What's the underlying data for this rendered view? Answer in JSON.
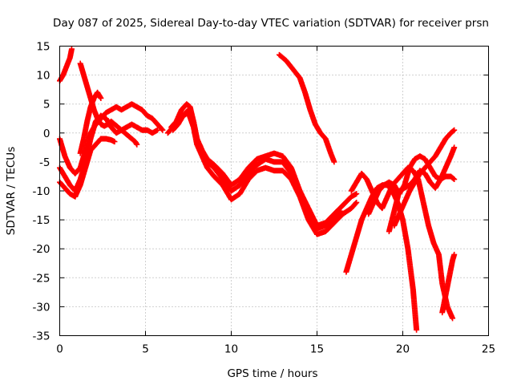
{
  "chart_data": {
    "type": "scatter",
    "title": "Day 087 of 2025, Sidereal Day-to-day VTEC variation (SDTVAR) for receiver prsn",
    "xlabel": "GPS time / hours",
    "ylabel": "SDTVAR / TECUs",
    "xlim": [
      0,
      25
    ],
    "ylim": [
      -35,
      15
    ],
    "xticks": [
      "0",
      "5",
      "10",
      "15",
      "20",
      "25"
    ],
    "yticks": [
      "15",
      "10",
      "5",
      "0",
      "-5",
      "-10",
      "-15",
      "-20",
      "-25",
      "-30",
      "-35"
    ],
    "xtick_values": [
      0,
      5,
      10,
      15,
      20,
      25
    ],
    "ytick_values": [
      15,
      10,
      5,
      0,
      -5,
      -10,
      -15,
      -20,
      -25,
      -30,
      -35
    ],
    "grid": true,
    "marker": "+",
    "color": "#ff0000",
    "series": [
      {
        "x": [
          0.0,
          0.2,
          0.4,
          0.6,
          0.7
        ],
        "y": [
          9,
          10,
          11.5,
          13,
          14.5
        ]
      },
      {
        "x": [
          1.2,
          1.4,
          1.6,
          1.8,
          2.0,
          2.2,
          2.4,
          2.6,
          2.8,
          3.0,
          3.2,
          3.4,
          3.6,
          3.8,
          4.0,
          4.2,
          4.4,
          4.5
        ],
        "y": [
          12,
          10,
          8,
          6,
          4,
          2.5,
          1.5,
          1.2,
          1.5,
          2,
          1.5,
          1,
          0.5,
          0,
          -0.5,
          -1,
          -1.5,
          -2
        ]
      },
      {
        "x": [
          0.0,
          0.3,
          0.6,
          0.9,
          1.2,
          1.5,
          1.8,
          2.1,
          2.4,
          2.7,
          3.0,
          3.3,
          3.6,
          3.9,
          4.2,
          4.5,
          4.8,
          5.1,
          5.4,
          5.7,
          6.0
        ],
        "y": [
          -1,
          -4,
          -6,
          -7,
          -6,
          -3,
          0,
          1.5,
          2.5,
          3.5,
          4,
          4.5,
          4,
          4.5,
          5,
          4.5,
          4,
          3,
          2.5,
          1.5,
          0.5
        ]
      },
      {
        "x": [
          0.0,
          0.3,
          0.6,
          0.9,
          1.2,
          1.5,
          1.8,
          2.1,
          2.4,
          2.7,
          3.0,
          3.3,
          3.6,
          3.9,
          4.2,
          4.5,
          4.8,
          5.1,
          5.4,
          5.7
        ],
        "y": [
          -6,
          -7.5,
          -9,
          -10,
          -8,
          -5,
          -1,
          2,
          3,
          2.5,
          1,
          0,
          0.5,
          1,
          1.5,
          1,
          0.5,
          0.5,
          0,
          0.5
        ]
      },
      {
        "x": [
          0.0,
          0.3,
          0.6,
          0.9,
          1.2,
          1.5,
          1.8,
          2.1,
          2.4,
          2.7,
          3.0,
          3.2
        ],
        "y": [
          -8.5,
          -9.5,
          -10.5,
          -11,
          -9,
          -6,
          -3,
          -2,
          -1,
          -1,
          -1.2,
          -1.5
        ]
      },
      {
        "x": [
          1.2,
          1.4,
          1.6,
          1.8,
          2.0,
          2.2,
          2.4
        ],
        "y": [
          -3.5,
          -1,
          2,
          4.5,
          6,
          7,
          6
        ]
      },
      {
        "x": [
          6.5,
          6.8,
          7.1,
          7.4,
          7.6,
          7.8,
          8.0,
          8.3,
          8.6,
          9.0,
          9.5,
          10.0,
          10.5,
          11.0,
          11.5,
          12.0,
          12.5,
          13.0,
          13.5,
          14.0,
          14.5,
          15.0,
          15.5,
          16.0,
          16.4
        ],
        "y": [
          1,
          2,
          4,
          5,
          4.5,
          2,
          -1,
          -3,
          -4.5,
          -5.5,
          -7,
          -9,
          -8,
          -6,
          -4.5,
          -4,
          -3.5,
          -4,
          -6,
          -10,
          -14,
          -16.5,
          -16,
          -15,
          -13.5
        ]
      },
      {
        "x": [
          6.3,
          6.6,
          6.9,
          7.2,
          7.5,
          7.8,
          8.0,
          8.3,
          8.6,
          9.0,
          9.5,
          10.0,
          10.5,
          11.0,
          11.5,
          12.0,
          12.5,
          13.0,
          13.5,
          14.0,
          14.5,
          15.0,
          15.5,
          16.0,
          16.5,
          17.0,
          17.3
        ],
        "y": [
          0,
          1,
          2,
          3,
          3.5,
          1,
          -2,
          -4,
          -6,
          -7.5,
          -9,
          -11.5,
          -10.5,
          -8,
          -6.5,
          -6,
          -6.5,
          -6.5,
          -8,
          -11,
          -15,
          -17.5,
          -17,
          -15.5,
          -14,
          -13,
          -12
        ]
      },
      {
        "x": [
          6.6,
          6.9,
          7.2,
          7.5,
          7.8,
          8.0,
          8.3,
          8.6,
          9.0,
          9.5,
          10.0,
          10.5,
          11.0,
          11.5,
          12.0,
          12.5,
          13.0,
          13.5,
          14.0,
          14.5,
          15.0,
          15.5,
          16.0,
          16.5,
          17.0,
          17.3
        ],
        "y": [
          0.5,
          1.5,
          3,
          4,
          2,
          -1,
          -3,
          -5,
          -6,
          -8,
          -10,
          -9,
          -7,
          -5.5,
          -4.5,
          -5,
          -5,
          -7,
          -10,
          -13,
          -16,
          -15.5,
          -14,
          -12.5,
          -11,
          -10.5
        ]
      },
      {
        "x": [
          12.8,
          13.2,
          13.6,
          14.0,
          14.3,
          14.6,
          14.9,
          15.2,
          15.5,
          15.8,
          16.0
        ],
        "y": [
          13.5,
          12.5,
          11,
          9.5,
          7,
          4,
          1.5,
          0,
          -1,
          -3.5,
          -5
        ]
      },
      {
        "x": [
          16.7,
          17.0,
          17.3,
          17.6,
          17.9,
          18.2,
          18.5,
          18.8,
          19.1,
          19.4,
          19.7,
          20.0,
          20.3,
          20.6,
          20.8
        ],
        "y": [
          -24,
          -21,
          -18,
          -15,
          -13,
          -11,
          -9.5,
          -9,
          -9,
          -10,
          -12,
          -15,
          -20,
          -27,
          -34
        ]
      },
      {
        "x": [
          17.0,
          17.3,
          17.6,
          17.9,
          18.2,
          18.5,
          18.8,
          19.1,
          19.4,
          19.7,
          20.0,
          20.3,
          20.6,
          20.9,
          21.2,
          21.5,
          21.8,
          22.1,
          22.3,
          22.6,
          22.9
        ],
        "y": [
          -10,
          -8.5,
          -7,
          -8,
          -10,
          -12,
          -13,
          -11,
          -9,
          -8,
          -7,
          -6,
          -6.5,
          -8,
          -12,
          -16,
          -19,
          -21,
          -26,
          -30,
          -32
        ]
      },
      {
        "x": [
          18.0,
          18.3,
          18.6,
          18.9,
          19.2,
          19.5,
          19.8,
          20.1,
          20.4,
          20.7,
          21.0,
          21.3,
          21.6,
          21.9,
          22.2,
          22.5,
          22.8,
          23.0
        ],
        "y": [
          -14,
          -12,
          -10,
          -9,
          -8.5,
          -9,
          -10.5,
          -9,
          -6,
          -4.5,
          -4,
          -4.5,
          -6,
          -7.5,
          -8,
          -7.5,
          -7.5,
          -8
        ]
      },
      {
        "x": [
          19.2,
          19.5,
          19.8,
          20.1,
          20.4,
          20.7,
          21.0,
          21.3,
          21.6,
          21.9,
          22.2,
          22.5,
          22.8,
          23.0
        ],
        "y": [
          -17,
          -13.5,
          -10,
          -9.5,
          -9,
          -8,
          -6.5,
          -7,
          -8.5,
          -9.5,
          -8,
          -6,
          -4,
          -2.5
        ]
      },
      {
        "x": [
          19.5,
          19.8,
          20.1,
          20.4,
          20.7,
          21.0,
          21.3,
          21.6,
          21.9,
          22.2,
          22.5,
          22.8,
          23.0
        ],
        "y": [
          -16,
          -14,
          -12,
          -10,
          -8.5,
          -7,
          -6,
          -5,
          -4,
          -2.5,
          -1,
          0,
          0.5
        ]
      },
      {
        "x": [
          22.3,
          22.5,
          22.7,
          22.9,
          23.0
        ],
        "y": [
          -31,
          -28,
          -25,
          -22,
          -21
        ]
      }
    ]
  }
}
